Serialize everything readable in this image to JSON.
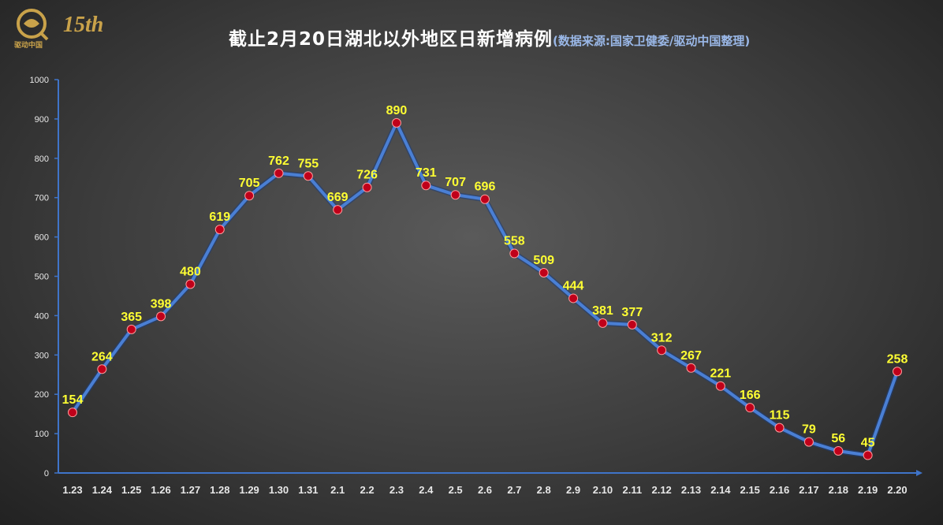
{
  "logo": {
    "text": "驱动中国",
    "anniversary": "15th"
  },
  "title": "截止2月20日湖北以外地区日新增病例",
  "subtitle": "(数据来源:国家卫健委/驱动中国整理)",
  "colors": {
    "line": "#4a7fd4",
    "marker": "#c0001a",
    "label": "#ffff33",
    "axis": "#3f74c9"
  },
  "chart_data": {
    "type": "line",
    "title": "截止2月20日湖北以外地区日新增病例",
    "subtitle": "(数据来源:国家卫健委/驱动中国整理)",
    "xlabel": "",
    "ylabel": "",
    "ylim": [
      0,
      1000
    ],
    "yticks": [
      0,
      100,
      200,
      300,
      400,
      500,
      600,
      700,
      800,
      900,
      1000
    ],
    "grid": false,
    "categories": [
      "1.23",
      "1.24",
      "1.25",
      "1.26",
      "1.27",
      "1.28",
      "1.29",
      "1.30",
      "1.31",
      "2.1",
      "2.2",
      "2.3",
      "2.4",
      "2.5",
      "2.6",
      "2.7",
      "2.8",
      "2.9",
      "2.10",
      "2.11",
      "2.12",
      "2.13",
      "2.14",
      "2.15",
      "2.16",
      "2.17",
      "2.18",
      "2.19",
      "2.20"
    ],
    "values": [
      154,
      264,
      365,
      398,
      480,
      619,
      705,
      762,
      755,
      669,
      726,
      890,
      731,
      707,
      696,
      558,
      509,
      444,
      381,
      377,
      312,
      267,
      221,
      166,
      115,
      79,
      56,
      45,
      258
    ]
  }
}
